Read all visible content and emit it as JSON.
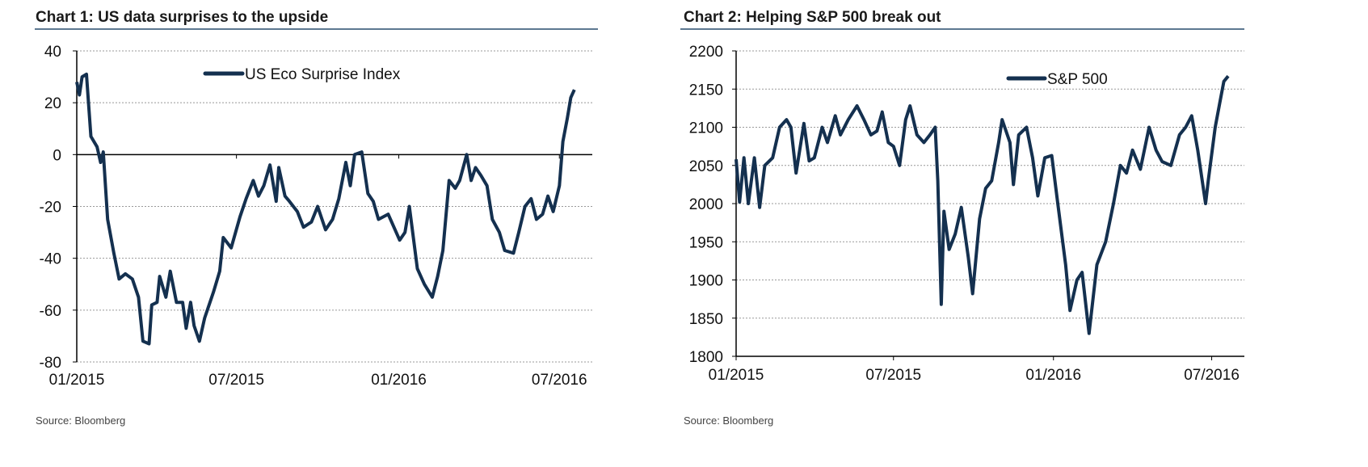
{
  "chart_data": [
    {
      "type": "line",
      "title": "Chart 1: US data surprises to the upside",
      "source": "Source: Bloomberg",
      "xlabel": "",
      "ylabel": "",
      "ylim": [
        -80,
        40
      ],
      "yticks": [
        "40",
        "20",
        "0",
        "-20",
        "-40",
        "-60",
        "-80"
      ],
      "xlim": [
        "2015-01-01",
        "2016-07-20"
      ],
      "xticks": [
        {
          "date": "2015-01-01",
          "label": "01/2015"
        },
        {
          "date": "2015-07-01",
          "label": "07/2015"
        },
        {
          "date": "2016-01-01",
          "label": "01/2016"
        },
        {
          "date": "2016-07-01",
          "label": "07/2016"
        }
      ],
      "grid": true,
      "legend_position": "top-center",
      "color": "#14304f",
      "series": [
        {
          "name": "US Eco Surprise Index",
          "points": [
            [
              "2015-01-01",
              28
            ],
            [
              "2015-01-04",
              23
            ],
            [
              "2015-01-07",
              30
            ],
            [
              "2015-01-12",
              31
            ],
            [
              "2015-01-17",
              7
            ],
            [
              "2015-01-24",
              3
            ],
            [
              "2015-01-28",
              -3
            ],
            [
              "2015-01-31",
              1
            ],
            [
              "2015-02-05",
              -25
            ],
            [
              "2015-02-12",
              -38
            ],
            [
              "2015-02-18",
              -48
            ],
            [
              "2015-02-25",
              -46
            ],
            [
              "2015-03-05",
              -48
            ],
            [
              "2015-03-12",
              -55
            ],
            [
              "2015-03-17",
              -72
            ],
            [
              "2015-03-24",
              -73
            ],
            [
              "2015-03-27",
              -58
            ],
            [
              "2015-04-02",
              -57
            ],
            [
              "2015-04-05",
              -47
            ],
            [
              "2015-04-12",
              -55
            ],
            [
              "2015-04-17",
              -45
            ],
            [
              "2015-04-24",
              -57
            ],
            [
              "2015-05-01",
              -57
            ],
            [
              "2015-05-05",
              -67
            ],
            [
              "2015-05-10",
              -57
            ],
            [
              "2015-05-14",
              -66
            ],
            [
              "2015-05-20",
              -72
            ],
            [
              "2015-05-26",
              -63
            ],
            [
              "2015-06-05",
              -53
            ],
            [
              "2015-06-12",
              -45
            ],
            [
              "2015-06-16",
              -32
            ],
            [
              "2015-06-25",
              -36
            ],
            [
              "2015-07-05",
              -24
            ],
            [
              "2015-07-12",
              -17
            ],
            [
              "2015-07-20",
              -10
            ],
            [
              "2015-07-26",
              -16
            ],
            [
              "2015-08-01",
              -12
            ],
            [
              "2015-08-08",
              -4
            ],
            [
              "2015-08-15",
              -18
            ],
            [
              "2015-08-18",
              -5
            ],
            [
              "2015-08-25",
              -16
            ],
            [
              "2015-08-30",
              -18
            ],
            [
              "2015-09-08",
              -22
            ],
            [
              "2015-09-15",
              -28
            ],
            [
              "2015-09-24",
              -26
            ],
            [
              "2015-10-01",
              -20
            ],
            [
              "2015-10-10",
              -29
            ],
            [
              "2015-10-18",
              -25
            ],
            [
              "2015-10-25",
              -17
            ],
            [
              "2015-11-02",
              -3
            ],
            [
              "2015-11-07",
              -12
            ],
            [
              "2015-11-12",
              0
            ],
            [
              "2015-11-20",
              1
            ],
            [
              "2015-11-27",
              -15
            ],
            [
              "2015-12-03",
              -18
            ],
            [
              "2015-12-09",
              -25
            ],
            [
              "2015-12-20",
              -23
            ],
            [
              "2016-01-02",
              -33
            ],
            [
              "2016-01-08",
              -30
            ],
            [
              "2016-01-13",
              -20
            ],
            [
              "2016-01-22",
              -44
            ],
            [
              "2016-01-30",
              -50
            ],
            [
              "2016-02-08",
              -55
            ],
            [
              "2016-02-14",
              -47
            ],
            [
              "2016-02-20",
              -37
            ],
            [
              "2016-02-27",
              -10
            ],
            [
              "2016-03-05",
              -13
            ],
            [
              "2016-03-10",
              -10
            ],
            [
              "2016-03-18",
              0
            ],
            [
              "2016-03-23",
              -10
            ],
            [
              "2016-03-28",
              -5
            ],
            [
              "2016-04-03",
              -8
            ],
            [
              "2016-04-10",
              -12
            ],
            [
              "2016-04-16",
              -25
            ],
            [
              "2016-04-24",
              -30
            ],
            [
              "2016-04-30",
              -37
            ],
            [
              "2016-05-10",
              -38
            ],
            [
              "2016-05-16",
              -30
            ],
            [
              "2016-05-23",
              -20
            ],
            [
              "2016-05-30",
              -17
            ],
            [
              "2016-06-05",
              -25
            ],
            [
              "2016-06-12",
              -23
            ],
            [
              "2016-06-18",
              -16
            ],
            [
              "2016-06-24",
              -22
            ],
            [
              "2016-07-01",
              -12
            ],
            [
              "2016-07-05",
              5
            ],
            [
              "2016-07-10",
              14
            ],
            [
              "2016-07-14",
              22
            ],
            [
              "2016-07-18",
              25
            ]
          ]
        }
      ]
    },
    {
      "type": "line",
      "title": "Chart 2: Helping S&P 500 break out",
      "source": "Source: Bloomberg",
      "xlabel": "",
      "ylabel": "",
      "ylim": [
        1800,
        2200
      ],
      "yticks": [
        "2200",
        "2150",
        "2100",
        "2050",
        "2000",
        "1950",
        "1900",
        "1850",
        "1800"
      ],
      "xlim": [
        "2015-01-01",
        "2016-07-20"
      ],
      "xticks": [
        {
          "date": "2015-01-01",
          "label": "01/2015"
        },
        {
          "date": "2015-07-01",
          "label": "07/2015"
        },
        {
          "date": "2016-01-01",
          "label": "01/2016"
        },
        {
          "date": "2016-07-01",
          "label": "07/2016"
        }
      ],
      "grid": true,
      "legend_position": "top-center",
      "color": "#14304f",
      "series": [
        {
          "name": "S&P 500",
          "points": [
            [
              "2015-01-01",
              2058
            ],
            [
              "2015-01-05",
              2002
            ],
            [
              "2015-01-10",
              2060
            ],
            [
              "2015-01-15",
              2000
            ],
            [
              "2015-01-22",
              2060
            ],
            [
              "2015-01-28",
              1995
            ],
            [
              "2015-02-03",
              2050
            ],
            [
              "2015-02-12",
              2060
            ],
            [
              "2015-02-20",
              2100
            ],
            [
              "2015-02-28",
              2110
            ],
            [
              "2015-03-05",
              2100
            ],
            [
              "2015-03-11",
              2040
            ],
            [
              "2015-03-20",
              2105
            ],
            [
              "2015-03-26",
              2056
            ],
            [
              "2015-04-01",
              2060
            ],
            [
              "2015-04-10",
              2100
            ],
            [
              "2015-04-16",
              2080
            ],
            [
              "2015-04-25",
              2115
            ],
            [
              "2015-05-01",
              2090
            ],
            [
              "2015-05-10",
              2110
            ],
            [
              "2015-05-20",
              2128
            ],
            [
              "2015-05-28",
              2110
            ],
            [
              "2015-06-05",
              2090
            ],
            [
              "2015-06-12",
              2095
            ],
            [
              "2015-06-18",
              2120
            ],
            [
              "2015-06-25",
              2080
            ],
            [
              "2015-07-01",
              2075
            ],
            [
              "2015-07-08",
              2050
            ],
            [
              "2015-07-15",
              2110
            ],
            [
              "2015-07-20",
              2128
            ],
            [
              "2015-07-28",
              2090
            ],
            [
              "2015-08-05",
              2080
            ],
            [
              "2015-08-12",
              2090
            ],
            [
              "2015-08-18",
              2100
            ],
            [
              "2015-08-21",
              2030
            ],
            [
              "2015-08-25",
              1868
            ],
            [
              "2015-08-28",
              1990
            ],
            [
              "2015-09-03",
              1940
            ],
            [
              "2015-09-10",
              1960
            ],
            [
              "2015-09-17",
              1995
            ],
            [
              "2015-09-25",
              1930
            ],
            [
              "2015-09-30",
              1882
            ],
            [
              "2015-10-08",
              1980
            ],
            [
              "2015-10-15",
              2020
            ],
            [
              "2015-10-22",
              2030
            ],
            [
              "2015-10-30",
              2080
            ],
            [
              "2015-11-03",
              2110
            ],
            [
              "2015-11-12",
              2080
            ],
            [
              "2015-11-16",
              2025
            ],
            [
              "2015-11-22",
              2090
            ],
            [
              "2015-12-01",
              2100
            ],
            [
              "2015-12-08",
              2060
            ],
            [
              "2015-12-14",
              2010
            ],
            [
              "2015-12-22",
              2060
            ],
            [
              "2015-12-30",
              2063
            ],
            [
              "2016-01-06",
              2000
            ],
            [
              "2016-01-15",
              1920
            ],
            [
              "2016-01-20",
              1860
            ],
            [
              "2016-01-28",
              1900
            ],
            [
              "2016-02-03",
              1910
            ],
            [
              "2016-02-11",
              1830
            ],
            [
              "2016-02-20",
              1920
            ],
            [
              "2016-03-01",
              1950
            ],
            [
              "2016-03-10",
              2000
            ],
            [
              "2016-03-18",
              2050
            ],
            [
              "2016-03-25",
              2040
            ],
            [
              "2016-04-01",
              2070
            ],
            [
              "2016-04-10",
              2045
            ],
            [
              "2016-04-20",
              2100
            ],
            [
              "2016-04-28",
              2070
            ],
            [
              "2016-05-05",
              2055
            ],
            [
              "2016-05-15",
              2050
            ],
            [
              "2016-05-25",
              2090
            ],
            [
              "2016-06-01",
              2100
            ],
            [
              "2016-06-08",
              2115
            ],
            [
              "2016-06-15",
              2070
            ],
            [
              "2016-06-24",
              2000
            ],
            [
              "2016-06-27",
              2030
            ],
            [
              "2016-07-05",
              2100
            ],
            [
              "2016-07-10",
              2130
            ],
            [
              "2016-07-15",
              2160
            ],
            [
              "2016-07-20",
              2167
            ]
          ]
        }
      ]
    }
  ]
}
